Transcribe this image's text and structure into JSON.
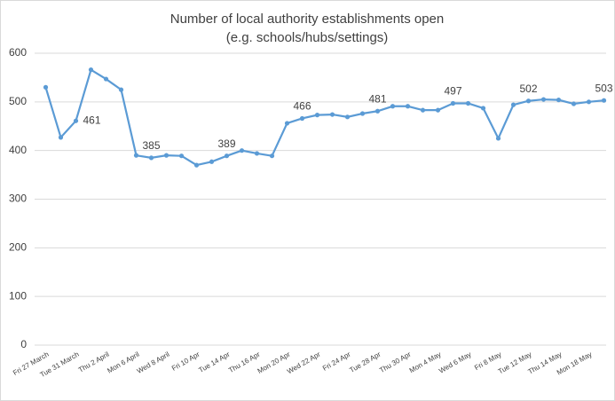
{
  "chart_data": {
    "type": "line",
    "title": "Number of local authority establishments open",
    "subtitle": "(e.g. schools/hubs/settings)",
    "categories": [
      "Fri 27 March",
      null,
      "Tue 31 March",
      null,
      "Thu 2 April",
      null,
      "Mon 6 April",
      null,
      "Wed 8 April",
      null,
      "Fri 10 Apr",
      null,
      "Tue 14 Apr",
      null,
      "Thu 16 Apr",
      null,
      "Mon 20 Apr",
      null,
      "Wed 22 Apr",
      null,
      "Fri 24 Apr",
      null,
      "Tue 28 Apr",
      null,
      "Thu 30 Apr",
      null,
      "Mon 4 May",
      null,
      "Wed 6 May",
      null,
      "Fri 8 May",
      null,
      "Tue 12 May",
      null,
      "Thu 14 May",
      null,
      "Mon 18 May",
      null
    ],
    "series": [
      {
        "name": "Establishments open",
        "color": "#5b9bd5",
        "values": [
          530,
          427,
          461,
          566,
          547,
          525,
          390,
          385,
          390,
          389,
          370,
          377,
          389,
          400,
          394,
          389,
          456,
          466,
          473,
          474,
          469,
          476,
          481,
          491,
          491,
          483,
          483,
          497,
          497,
          487,
          425,
          494,
          502,
          505,
          504,
          496,
          500,
          503
        ],
        "value_labels": [
          null,
          null,
          "461",
          null,
          null,
          null,
          null,
          "385",
          null,
          null,
          null,
          null,
          "389",
          null,
          null,
          null,
          null,
          "466",
          null,
          null,
          null,
          null,
          "481",
          null,
          null,
          null,
          null,
          "497",
          null,
          null,
          null,
          null,
          "502",
          null,
          null,
          null,
          null,
          "503"
        ]
      }
    ],
    "ylim": [
      0,
      600
    ],
    "yticks": [
      0,
      100,
      200,
      300,
      400,
      500,
      600
    ],
    "grid": true
  }
}
